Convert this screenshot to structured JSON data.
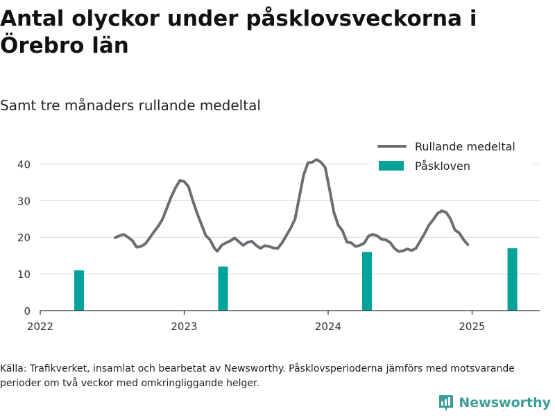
{
  "title": "Antal olyckor under påsklovsveckorna i Örebro län",
  "subtitle": "Samt tre månaders rullande medeltal",
  "source_note": "Källa: Trafikverket, insamlat och bearbetat av Newsworthy. Påsklovsperioderna jämförs med motsvarande perioder om två veckor med omkringliggande helger.",
  "brand": {
    "name": "Newsworthy",
    "icon": "newsworthy-logo-icon",
    "color": "#3b9e96"
  },
  "colors": {
    "line": "#6d6c73",
    "bar": "#00a299",
    "grid": "#d9d9d9",
    "axis": "#333333"
  },
  "chart_data": {
    "type": "bar+line",
    "x_unit": "year",
    "xlim": [
      2022.0,
      2025.47
    ],
    "ylim": [
      0,
      45
    ],
    "x_ticks": [
      2022,
      2023,
      2024,
      2025
    ],
    "x_tick_labels": [
      "2022",
      "2023",
      "2024",
      "2025"
    ],
    "y_ticks": [
      0,
      10,
      20,
      30,
      40
    ],
    "y_tick_labels": [
      "0",
      "10",
      "20",
      "30",
      "40"
    ],
    "grid": "horizontal",
    "legend_position": "top-right",
    "series": [
      {
        "name": "Rullande medeltal",
        "type": "line",
        "points": [
          [
            2022.52,
            19.9
          ],
          [
            2022.55,
            20.4
          ],
          [
            2022.58,
            20.8
          ],
          [
            2022.61,
            20.0
          ],
          [
            2022.64,
            19.1
          ],
          [
            2022.67,
            17.3
          ],
          [
            2022.7,
            17.5
          ],
          [
            2022.73,
            18.2
          ],
          [
            2022.76,
            19.8
          ],
          [
            2022.79,
            21.5
          ],
          [
            2022.82,
            23.0
          ],
          [
            2022.85,
            25.0
          ],
          [
            2022.88,
            28.0
          ],
          [
            2022.91,
            31.0
          ],
          [
            2022.94,
            33.5
          ],
          [
            2022.97,
            35.5
          ],
          [
            2023.0,
            35.2
          ],
          [
            2023.03,
            33.8
          ],
          [
            2023.06,
            30.0
          ],
          [
            2023.09,
            26.5
          ],
          [
            2023.12,
            23.5
          ],
          [
            2023.15,
            20.5
          ],
          [
            2023.18,
            19.3
          ],
          [
            2023.21,
            17.0
          ],
          [
            2023.23,
            16.2
          ],
          [
            2023.26,
            17.8
          ],
          [
            2023.29,
            18.5
          ],
          [
            2023.32,
            19.0
          ],
          [
            2023.35,
            19.8
          ],
          [
            2023.38,
            18.8
          ],
          [
            2023.41,
            17.8
          ],
          [
            2023.44,
            18.6
          ],
          [
            2023.47,
            18.9
          ],
          [
            2023.5,
            17.8
          ],
          [
            2023.53,
            17.0
          ],
          [
            2023.56,
            17.7
          ],
          [
            2023.59,
            17.5
          ],
          [
            2023.62,
            17.1
          ],
          [
            2023.65,
            17.0
          ],
          [
            2023.68,
            18.5
          ],
          [
            2023.71,
            20.5
          ],
          [
            2023.74,
            22.5
          ],
          [
            2023.77,
            25.0
          ],
          [
            2023.8,
            31.0
          ],
          [
            2023.83,
            37.0
          ],
          [
            2023.86,
            40.3
          ],
          [
            2023.89,
            40.5
          ],
          [
            2023.92,
            41.2
          ],
          [
            2023.95,
            40.5
          ],
          [
            2023.98,
            39.0
          ],
          [
            2024.01,
            33.0
          ],
          [
            2024.04,
            26.8
          ],
          [
            2024.07,
            23.3
          ],
          [
            2024.1,
            21.8
          ],
          [
            2024.13,
            18.7
          ],
          [
            2024.16,
            18.5
          ],
          [
            2024.19,
            17.5
          ],
          [
            2024.22,
            17.8
          ],
          [
            2024.25,
            18.4
          ],
          [
            2024.28,
            20.3
          ],
          [
            2024.31,
            20.8
          ],
          [
            2024.34,
            20.4
          ],
          [
            2024.37,
            19.5
          ],
          [
            2024.4,
            19.3
          ],
          [
            2024.43,
            18.6
          ],
          [
            2024.46,
            17.0
          ],
          [
            2024.49,
            16.1
          ],
          [
            2024.52,
            16.3
          ],
          [
            2024.55,
            16.8
          ],
          [
            2024.58,
            16.4
          ],
          [
            2024.61,
            17.0
          ],
          [
            2024.64,
            19.0
          ],
          [
            2024.67,
            21.0
          ],
          [
            2024.7,
            23.3
          ],
          [
            2024.73,
            24.8
          ],
          [
            2024.76,
            26.5
          ],
          [
            2024.79,
            27.2
          ],
          [
            2024.82,
            26.8
          ],
          [
            2024.85,
            25.0
          ],
          [
            2024.88,
            22.0
          ],
          [
            2024.91,
            21.2
          ],
          [
            2024.94,
            19.4
          ],
          [
            2024.97,
            18.0
          ]
        ]
      },
      {
        "name": "Påskloven",
        "type": "bar",
        "x": [
          2022.27,
          2023.27,
          2024.27,
          2025.28
        ],
        "values": [
          11,
          12,
          16,
          17
        ]
      }
    ]
  }
}
